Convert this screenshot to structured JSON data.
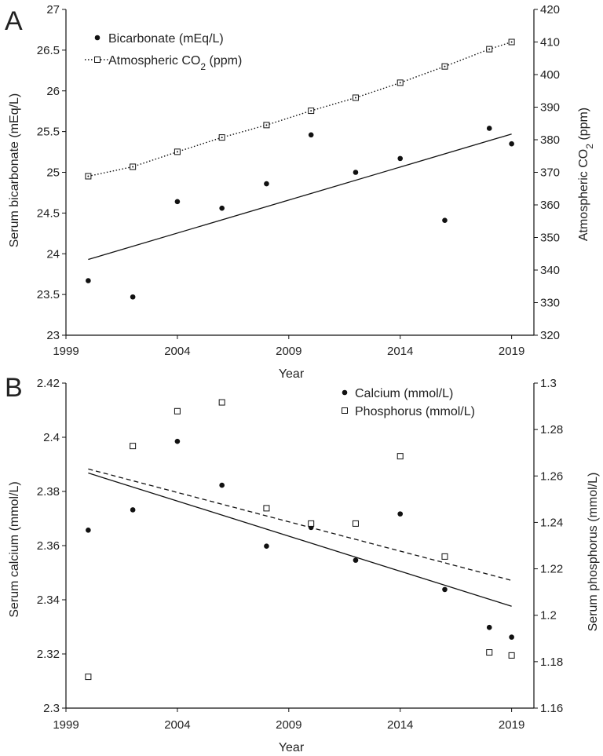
{
  "chart_data": [
    {
      "panel": "A",
      "type": "scatter",
      "xlabel": "Year",
      "ylabel": "Serum bicarbonate (mEq/L)",
      "y2label_main": "Atmospheric CO",
      "y2label_sub": "2",
      "y2label_tail": " (ppm)",
      "xlim": [
        1999,
        2020
      ],
      "ylim": [
        23,
        27
      ],
      "y2lim": [
        320,
        420
      ],
      "xticks": [
        1999,
        2004,
        2009,
        2014,
        2019
      ],
      "yticks": [
        "23",
        "23.5",
        "24",
        "24.5",
        "25",
        "25.5",
        "26",
        "26.5",
        "27"
      ],
      "y2ticks": [
        "320",
        "330",
        "340",
        "350",
        "360",
        "370",
        "380",
        "390",
        "400",
        "410",
        "420"
      ],
      "legend_position": "top-left",
      "series": [
        {
          "name": "Bicarbonate (mEq/L)",
          "axis": "left",
          "marker": "filled-circle",
          "x": [
            2000,
            2002,
            2004,
            2006,
            2008,
            2010,
            2012,
            2014,
            2016,
            2018,
            2019
          ],
          "y": [
            23.67,
            23.47,
            24.64,
            24.56,
            24.86,
            25.46,
            25.0,
            25.17,
            24.41,
            25.54,
            25.35
          ]
        },
        {
          "name_main": "Atmospheric CO",
          "name_sub": "2",
          "name_tail": " (ppm)",
          "axis": "right",
          "marker": "open-square-dot",
          "line": "dotted",
          "x": [
            2000,
            2002,
            2004,
            2006,
            2008,
            2010,
            2012,
            2014,
            2016,
            2018,
            2019
          ],
          "y": [
            368.8,
            371.7,
            376.3,
            380.7,
            384.5,
            388.9,
            392.9,
            397.5,
            402.5,
            407.8,
            410.0
          ]
        }
      ],
      "trendlines": [
        {
          "axis": "left",
          "style": "solid",
          "x": [
            2000,
            2019
          ],
          "y": [
            23.93,
            25.47
          ]
        }
      ]
    },
    {
      "panel": "B",
      "type": "scatter",
      "xlabel": "Year",
      "ylabel": "Serum calcium (mmol/L)",
      "y2label": "Serum phosphorus (mmol/L)",
      "xlim": [
        1999,
        2020
      ],
      "ylim": [
        2.3,
        2.42
      ],
      "y2lim": [
        1.16,
        1.3
      ],
      "xticks": [
        1999,
        2004,
        2009,
        2014,
        2019
      ],
      "yticks": [
        "2.3",
        "2.32",
        "2.34",
        "2.36",
        "2.38",
        "2.4",
        "2.42"
      ],
      "y2ticks": [
        "1.16",
        "1.18",
        "1.2",
        "1.22",
        "1.24",
        "1.26",
        "1.28",
        "1.3"
      ],
      "legend_position": "top-right",
      "series": [
        {
          "name": "Calcium (mmol/L)",
          "axis": "left",
          "marker": "filled-circle",
          "x": [
            2000,
            2002,
            2004,
            2006,
            2008,
            2010,
            2012,
            2014,
            2016,
            2018,
            2019
          ],
          "y": [
            2.3657,
            2.3732,
            2.3985,
            2.3823,
            2.3598,
            2.3667,
            2.3546,
            2.3717,
            2.3438,
            2.3298,
            2.3262
          ]
        },
        {
          "name": "Phosphorus (mmol/L)",
          "axis": "right",
          "marker": "open-square",
          "x": [
            2000,
            2002,
            2004,
            2006,
            2008,
            2010,
            2012,
            2014,
            2016,
            2018,
            2019
          ],
          "y": [
            1.1735,
            1.2729,
            1.2879,
            1.2917,
            1.2461,
            1.2395,
            1.2395,
            1.2685,
            1.2253,
            1.184,
            1.1827
          ]
        }
      ],
      "trendlines": [
        {
          "axis": "left",
          "style": "solid",
          "x": [
            2000,
            2019
          ],
          "y": [
            2.3868,
            2.3376
          ]
        },
        {
          "axis": "right",
          "style": "dashed",
          "x": [
            2000,
            2019
          ],
          "y": [
            1.263,
            1.215
          ]
        }
      ]
    }
  ]
}
